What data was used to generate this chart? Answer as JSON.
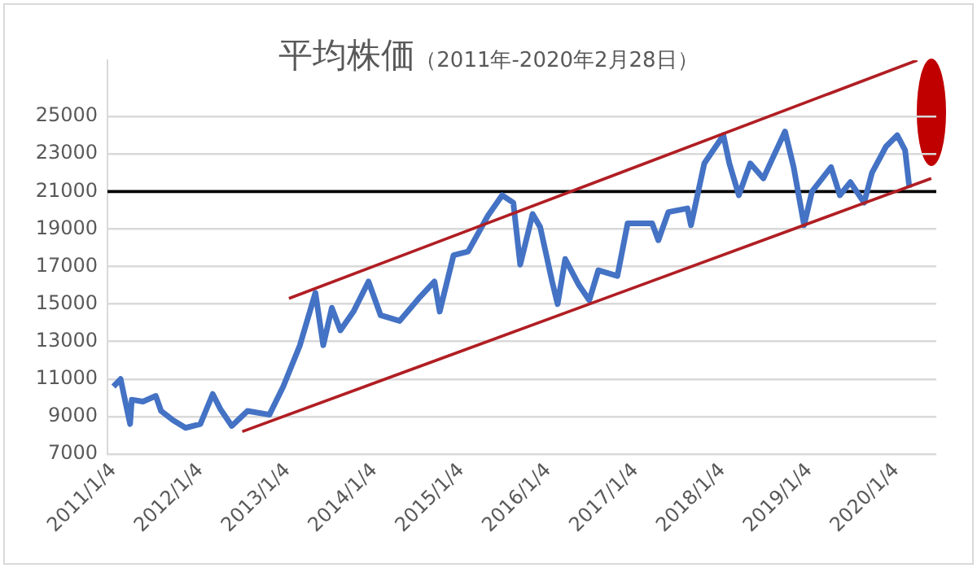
{
  "chart_data": {
    "type": "line",
    "title": "平均株価",
    "subtitle": "（2011年-2020年2月28日）",
    "xlim": [
      "2010-12-10",
      "2020-06-20"
    ],
    "xticks": [
      {
        "value": "2011-01-04",
        "label": "2011/1/4"
      },
      {
        "value": "2012-01-04",
        "label": "2012/1/4"
      },
      {
        "value": "2013-01-04",
        "label": "2013/1/4"
      },
      {
        "value": "2014-01-04",
        "label": "2014/1/4"
      },
      {
        "value": "2015-01-04",
        "label": "2015/1/4"
      },
      {
        "value": "2016-01-04",
        "label": "2016/1/4"
      },
      {
        "value": "2017-01-04",
        "label": "2017/1/4"
      },
      {
        "value": "2018-01-04",
        "label": "2018/1/4"
      },
      {
        "value": "2019-01-04",
        "label": "2019/1/4"
      },
      {
        "value": "2020-01-04",
        "label": "2020/1/4"
      }
    ],
    "ylim": [
      7000,
      28000
    ],
    "yticks": [
      7000,
      9000,
      11000,
      13000,
      15000,
      17000,
      19000,
      21000,
      23000,
      25000
    ],
    "grid": "y",
    "legend": false,
    "marker": "none",
    "line_style": "solid",
    "ref_lines": [
      {
        "axis": "y",
        "value": 21000,
        "color": "#000000"
      }
    ],
    "series": [
      {
        "color": "#4472c4",
        "x": [
          "2011-01-04",
          "2011-02-03",
          "2011-03-15",
          "2011-03-22",
          "2011-05-08",
          "2011-07-01",
          "2011-07-23",
          "2011-09-12",
          "2011-11-03",
          "2012-01-04",
          "2012-02-25",
          "2012-03-28",
          "2012-05-15",
          "2012-07-20",
          "2012-10-20",
          "2012-12-17",
          "2013-02-25",
          "2013-05-01",
          "2013-06-03",
          "2013-07-09",
          "2013-08-14",
          "2013-10-08",
          "2013-12-10",
          "2014-01-30",
          "2014-04-20",
          "2014-07-09",
          "2014-09-13",
          "2014-10-05",
          "2014-12-02",
          "2015-02-01",
          "2015-04-25",
          "2015-06-24",
          "2015-08-10",
          "2015-09-08",
          "2015-10-30",
          "2015-12-01",
          "2016-01-20",
          "2016-02-12",
          "2016-03-15",
          "2016-05-12",
          "2016-06-24",
          "2016-08-01",
          "2016-10-20",
          "2016-12-02",
          "2017-03-15",
          "2017-04-10",
          "2017-05-22",
          "2017-08-10",
          "2017-08-25",
          "2017-10-20",
          "2018-01-08",
          "2018-02-02",
          "2018-03-14",
          "2018-05-01",
          "2018-06-25",
          "2018-07-31",
          "2018-09-24",
          "2018-10-30",
          "2018-12-13",
          "2019-01-15",
          "2019-04-05",
          "2019-05-12",
          "2019-06-25",
          "2019-08-22",
          "2019-09-24",
          "2019-11-22",
          "2020-01-08",
          "2020-02-10",
          "2020-02-28"
        ],
        "values": [
          10600,
          11000,
          8600,
          9900,
          9800,
          10100,
          9300,
          8800,
          8400,
          8600,
          10200,
          9400,
          8500,
          9300,
          9100,
          10600,
          12800,
          15600,
          12800,
          14800,
          13600,
          14600,
          16200,
          14400,
          14100,
          15300,
          16200,
          14600,
          17600,
          17800,
          19700,
          20800,
          20400,
          17100,
          19800,
          19100,
          16200,
          15000,
          17400,
          16000,
          15200,
          16800,
          16500,
          19300,
          19300,
          18400,
          19900,
          20100,
          19200,
          22500,
          24000,
          22500,
          20800,
          22500,
          21700,
          22700,
          24200,
          22300,
          19200,
          21000,
          22300,
          20800,
          21500,
          20400,
          22000,
          23400,
          24000,
          23200,
          21200
        ]
      },
      {
        "color": "#b01e23",
        "x": [
          "2013-01-10",
          "2020-04-01"
        ],
        "values": [
          15300,
          28000
        ]
      },
      {
        "color": "#b01e23",
        "x": [
          "2012-06-28",
          "2020-05-30"
        ],
        "values": [
          8200,
          21700
        ]
      }
    ]
  }
}
